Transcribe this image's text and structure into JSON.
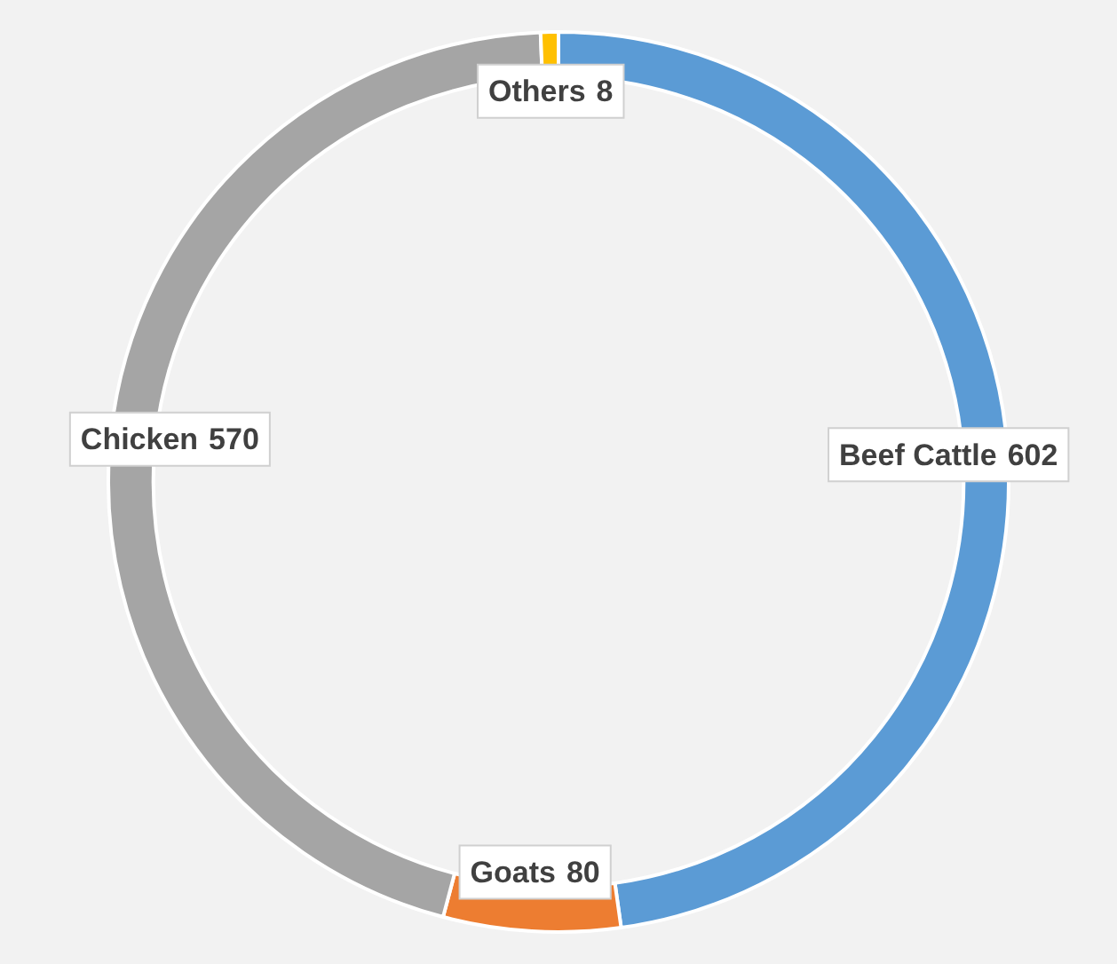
{
  "chart_data": {
    "type": "donut",
    "categories": [
      "Beef Cattle",
      "Goats",
      "Chicken",
      "Others"
    ],
    "values": [
      602,
      80,
      570,
      8
    ],
    "colors": [
      "#5b9bd5",
      "#ed7d31",
      "#a5a5a5",
      "#ffc000"
    ],
    "data_labels": true,
    "legend": false
  }
}
